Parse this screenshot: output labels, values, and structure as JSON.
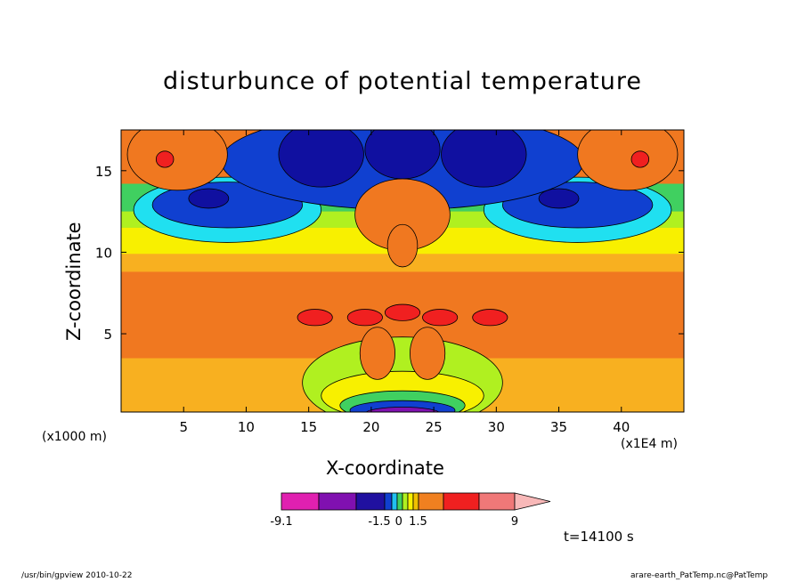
{
  "chart_data": {
    "type": "heatmap",
    "title": "disturbunce of potential temperature",
    "xlabel": "X-coordinate",
    "ylabel": "Z-coordinate",
    "x_unit_label": "(x1000 m)",
    "x_scale_label": "(x1E4 m)",
    "x_ticks": [
      5,
      10,
      15,
      20,
      25,
      30,
      35,
      40
    ],
    "y_ticks": [
      5,
      10,
      15
    ],
    "xlim": [
      0,
      45
    ],
    "ylim": [
      0.2,
      17.5
    ],
    "colorbar": {
      "tick_labels": [
        {
          "label": "-9.1",
          "value": -9.1
        },
        {
          "label": "-1.5",
          "value": -1.5
        },
        {
          "label": "0",
          "value": 0
        },
        {
          "label": "1.5",
          "value": 1.5
        },
        {
          "label": "9",
          "value": 9
        }
      ],
      "colors": [
        "#e020b0",
        "#8010b0",
        "#2010a0",
        "#1040d0",
        "#20c0f0",
        "#40d060",
        "#b0f020",
        "#f8f000",
        "#f0c000",
        "#f08020",
        "#f02020",
        "#f07878",
        "#f8b8b8"
      ]
    },
    "field_description": "Mirror-symmetric anomaly about x=22.5: warm (orange) band 3-8 km, cold (blue) cores near 13-17 km, warm plume above 9 km at center, cold (purple) near surface at center",
    "contour_colors": {
      "warm_band": "#f07820",
      "warm_light": "#f8b020",
      "yellow": "#f8f000",
      "lime": "#b0f020",
      "green": "#40d060",
      "cyan": "#20e0f0",
      "blue": "#1040d0",
      "navy": "#1010a0",
      "red": "#f02020",
      "purple": "#8010b0",
      "magenta": "#e020b0"
    },
    "annotation_time": "t=14100 s"
  },
  "footer": {
    "left": "/usr/bin/gpview   2010-10-22",
    "right": "arare-earth_PatTemp.nc@PatTemp"
  }
}
